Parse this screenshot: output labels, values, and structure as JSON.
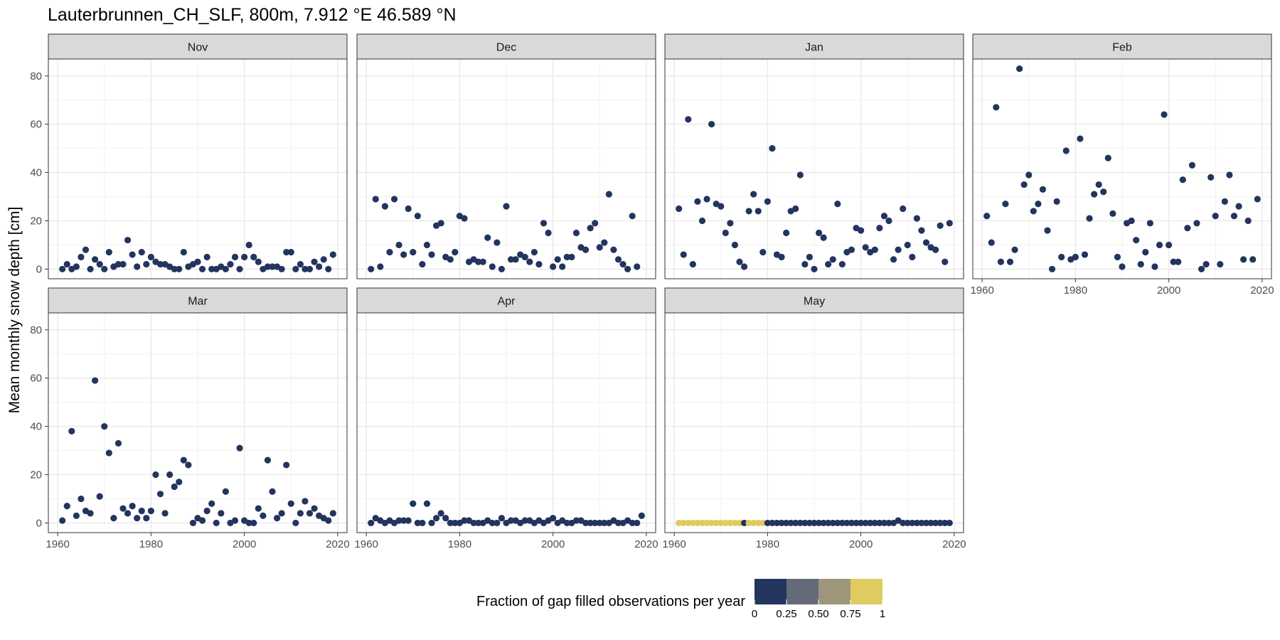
{
  "chart_data": {
    "type": "scatter",
    "title": "Lauterbrunnen_CH_SLF, 800m, 7.912 °E 46.589 °N",
    "ylabel": "Mean monthly snow depth [cm]",
    "xlabel": "",
    "xlim": [
      1958,
      2022
    ],
    "ylim": [
      -4,
      87
    ],
    "x_ticks": [
      1960,
      1980,
      2000,
      2020
    ],
    "y_ticks": [
      0,
      20,
      40,
      60,
      80
    ],
    "x_tick_labels": [
      "1960",
      "1980",
      "2000",
      "2020"
    ],
    "y_tick_labels": [
      "0",
      "20",
      "40",
      "60",
      "80"
    ],
    "grid": true,
    "legend": {
      "title": "Fraction of gap filled observations per year",
      "placement": "bottom",
      "tick_values": [
        0,
        0.25,
        0.5,
        0.75,
        1
      ],
      "tick_labels": [
        "0",
        "0.25",
        "0.50",
        "0.75",
        "1"
      ],
      "colors": [
        "#23345f",
        "#646a78",
        "#9d967a",
        "#e0cb60"
      ]
    },
    "panels": [
      {
        "label": "Nov",
        "years": [
          1961,
          1962,
          1963,
          1964,
          1965,
          1966,
          1967,
          1968,
          1969,
          1970,
          1971,
          1972,
          1973,
          1974,
          1975,
          1976,
          1977,
          1978,
          1979,
          1980,
          1981,
          1982,
          1983,
          1984,
          1985,
          1986,
          1987,
          1988,
          1989,
          1990,
          1991,
          1992,
          1993,
          1994,
          1995,
          1996,
          1997,
          1998,
          1999,
          2000,
          2001,
          2002,
          2003,
          2004,
          2005,
          2006,
          2007,
          2008,
          2009,
          2010,
          2011,
          2012,
          2013,
          2014,
          2015,
          2016,
          2017,
          2018,
          2019
        ],
        "values": [
          0,
          2,
          0,
          1,
          5,
          8,
          0,
          4,
          2,
          0,
          7,
          1,
          2,
          2,
          12,
          6,
          1,
          7,
          2,
          5,
          3,
          2,
          2,
          1,
          0,
          0,
          7,
          1,
          2,
          3,
          0,
          5,
          0,
          0,
          1,
          0,
          2,
          5,
          0,
          5,
          10,
          5,
          3,
          0,
          1,
          1,
          1,
          0,
          7,
          7,
          0,
          2,
          0,
          0,
          3,
          1,
          4,
          0,
          6
        ],
        "fractions": [
          0,
          0,
          0,
          0,
          0,
          0,
          0,
          0,
          0,
          0,
          0,
          0,
          0,
          0,
          0,
          0,
          0,
          0,
          0,
          0,
          0,
          0,
          0,
          0,
          0,
          0,
          0,
          0,
          0,
          0,
          0,
          0,
          0,
          0,
          0,
          0,
          0,
          0,
          0,
          0,
          0,
          0,
          0,
          0,
          0,
          0,
          0,
          0,
          0,
          0,
          0,
          0,
          0,
          0,
          0,
          0,
          0,
          0,
          0
        ]
      },
      {
        "label": "Dec",
        "years": [
          1961,
          1962,
          1963,
          1964,
          1965,
          1966,
          1967,
          1968,
          1969,
          1970,
          1971,
          1972,
          1973,
          1974,
          1975,
          1976,
          1977,
          1978,
          1979,
          1980,
          1981,
          1982,
          1983,
          1984,
          1985,
          1986,
          1987,
          1988,
          1989,
          1990,
          1991,
          1992,
          1993,
          1994,
          1995,
          1996,
          1997,
          1998,
          1999,
          2000,
          2001,
          2002,
          2003,
          2004,
          2005,
          2006,
          2007,
          2008,
          2009,
          2010,
          2011,
          2012,
          2013,
          2014,
          2015,
          2016,
          2017,
          2018
        ],
        "values": [
          0,
          29,
          1,
          26,
          7,
          29,
          10,
          6,
          25,
          7,
          22,
          2,
          10,
          6,
          18,
          19,
          5,
          4,
          7,
          22,
          21,
          3,
          4,
          3,
          3,
          13,
          1,
          11,
          0,
          26,
          4,
          4,
          6,
          5,
          3,
          7,
          2,
          19,
          15,
          1,
          4,
          1,
          5,
          5,
          15,
          9,
          8,
          17,
          19,
          9,
          11,
          31,
          8,
          4,
          2,
          0,
          22,
          1
        ],
        "fractions": [
          0,
          0,
          0,
          0,
          0,
          0,
          0,
          0,
          0,
          0,
          0,
          0,
          0,
          0,
          0,
          0,
          0,
          0,
          0,
          0,
          0,
          0,
          0,
          0,
          0,
          0,
          0,
          0,
          0,
          0,
          0,
          0,
          0,
          0,
          0,
          0,
          0,
          0,
          0,
          0,
          0,
          0,
          0,
          0,
          0,
          0,
          0,
          0,
          0,
          0,
          0,
          0,
          0,
          0,
          0,
          0,
          0,
          0
        ]
      },
      {
        "label": "Jan",
        "years": [
          1961,
          1962,
          1963,
          1964,
          1965,
          1966,
          1967,
          1968,
          1969,
          1970,
          1971,
          1972,
          1973,
          1974,
          1975,
          1976,
          1977,
          1978,
          1979,
          1980,
          1981,
          1982,
          1983,
          1984,
          1985,
          1986,
          1987,
          1988,
          1989,
          1990,
          1991,
          1992,
          1993,
          1994,
          1995,
          1996,
          1997,
          1998,
          1999,
          2000,
          2001,
          2002,
          2003,
          2004,
          2005,
          2006,
          2007,
          2008,
          2009,
          2010,
          2011,
          2012,
          2013,
          2014,
          2015,
          2016,
          2017,
          2018,
          2019
        ],
        "values": [
          25,
          6,
          62,
          2,
          28,
          20,
          29,
          60,
          27,
          26,
          15,
          19,
          10,
          3,
          1,
          24,
          31,
          24,
          7,
          28,
          50,
          6,
          5,
          15,
          24,
          25,
          39,
          2,
          5,
          0,
          15,
          13,
          2,
          4,
          27,
          2,
          7,
          8,
          17,
          16,
          9,
          7,
          8,
          17,
          22,
          20,
          4,
          8,
          25,
          10,
          5,
          21,
          16,
          11,
          9,
          8,
          18,
          3,
          19
        ],
        "fractions": [
          0,
          0,
          0,
          0,
          0,
          0,
          0,
          0,
          0,
          0,
          0,
          0,
          0,
          0,
          0,
          0,
          0,
          0,
          0,
          0,
          0,
          0,
          0,
          0,
          0,
          0,
          0,
          0,
          0,
          0,
          0,
          0,
          0,
          0,
          0,
          0,
          0,
          0,
          0,
          0,
          0,
          0,
          0,
          0,
          0,
          0,
          0,
          0,
          0,
          0,
          0,
          0,
          0,
          0,
          0,
          0,
          0,
          0,
          0
        ]
      },
      {
        "label": "Feb",
        "years": [
          1961,
          1962,
          1963,
          1964,
          1965,
          1966,
          1967,
          1968,
          1969,
          1970,
          1971,
          1972,
          1973,
          1974,
          1975,
          1976,
          1977,
          1978,
          1979,
          1980,
          1981,
          1982,
          1983,
          1984,
          1985,
          1986,
          1987,
          1988,
          1989,
          1990,
          1991,
          1992,
          1993,
          1994,
          1995,
          1996,
          1997,
          1998,
          1999,
          2000,
          2001,
          2002,
          2003,
          2004,
          2005,
          2006,
          2007,
          2008,
          2009,
          2010,
          2011,
          2012,
          2013,
          2014,
          2015,
          2016,
          2017,
          2018,
          2019
        ],
        "values": [
          22,
          11,
          67,
          3,
          27,
          3,
          8,
          83,
          35,
          39,
          24,
          27,
          33,
          16,
          0,
          28,
          5,
          49,
          4,
          5,
          54,
          6,
          21,
          31,
          35,
          32,
          46,
          23,
          5,
          1,
          19,
          20,
          12,
          2,
          7,
          19,
          1,
          10,
          64,
          10,
          3,
          3,
          37,
          17,
          43,
          19,
          0,
          2,
          38,
          22,
          2,
          28,
          39,
          22,
          26,
          4,
          20,
          4,
          29
        ],
        "fractions": [
          0,
          0,
          0,
          0,
          0,
          0,
          0,
          0,
          0,
          0,
          0,
          0,
          0,
          0,
          0,
          0,
          0,
          0,
          0,
          0,
          0,
          0,
          0,
          0,
          0,
          0,
          0,
          0,
          0,
          0,
          0,
          0,
          0,
          0,
          0,
          0,
          0,
          0,
          0,
          0,
          0,
          0,
          0,
          0,
          0,
          0,
          0,
          0,
          0,
          0,
          0,
          0,
          0,
          0,
          0,
          0,
          0,
          0,
          0
        ]
      },
      {
        "label": "Mar",
        "years": [
          1961,
          1962,
          1963,
          1964,
          1965,
          1966,
          1967,
          1968,
          1969,
          1970,
          1971,
          1972,
          1973,
          1974,
          1975,
          1976,
          1977,
          1978,
          1979,
          1980,
          1981,
          1982,
          1983,
          1984,
          1985,
          1986,
          1987,
          1988,
          1989,
          1990,
          1991,
          1992,
          1993,
          1994,
          1995,
          1996,
          1997,
          1998,
          1999,
          2000,
          2001,
          2002,
          2003,
          2004,
          2005,
          2006,
          2007,
          2008,
          2009,
          2010,
          2011,
          2012,
          2013,
          2014,
          2015,
          2016,
          2017,
          2018,
          2019
        ],
        "values": [
          1,
          7,
          38,
          3,
          10,
          5,
          4,
          59,
          11,
          40,
          29,
          2,
          33,
          6,
          4,
          7,
          2,
          5,
          2,
          5,
          20,
          12,
          4,
          20,
          15,
          17,
          26,
          24,
          0,
          2,
          1,
          5,
          8,
          0,
          4,
          13,
          0,
          1,
          31,
          1,
          0,
          0,
          6,
          3,
          26,
          13,
          2,
          4,
          24,
          8,
          0,
          4,
          9,
          4,
          6,
          3,
          2,
          1,
          4
        ],
        "fractions": [
          0,
          0,
          0,
          0,
          0,
          0,
          0,
          0,
          0,
          0,
          0,
          0,
          0,
          0,
          0,
          0,
          0,
          0,
          0,
          0,
          0,
          0,
          0,
          0,
          0,
          0,
          0,
          0,
          0,
          0,
          0,
          0,
          0,
          0,
          0,
          0,
          0,
          0,
          0,
          0,
          0,
          0,
          0,
          0,
          0,
          0,
          0,
          0,
          0,
          0,
          0,
          0,
          0,
          0,
          0,
          0,
          0,
          0,
          0
        ]
      },
      {
        "label": "Apr",
        "years": [
          1961,
          1962,
          1963,
          1964,
          1965,
          1966,
          1967,
          1968,
          1969,
          1970,
          1971,
          1972,
          1973,
          1974,
          1975,
          1976,
          1977,
          1978,
          1979,
          1980,
          1981,
          1982,
          1983,
          1984,
          1985,
          1986,
          1987,
          1988,
          1989,
          1990,
          1991,
          1992,
          1993,
          1994,
          1995,
          1996,
          1997,
          1998,
          1999,
          2000,
          2001,
          2002,
          2003,
          2004,
          2005,
          2006,
          2007,
          2008,
          2009,
          2010,
          2011,
          2012,
          2013,
          2014,
          2015,
          2016,
          2017,
          2018,
          2019
        ],
        "values": [
          0,
          2,
          1,
          0,
          1,
          0,
          1,
          1,
          1,
          8,
          0,
          0,
          8,
          0,
          2,
          4,
          2,
          0,
          0,
          0,
          1,
          1,
          0,
          0,
          0,
          1,
          0,
          0,
          2,
          0,
          1,
          1,
          0,
          1,
          1,
          0,
          1,
          0,
          1,
          2,
          0,
          1,
          0,
          0,
          1,
          1,
          0,
          0,
          0,
          0,
          0,
          0,
          1,
          0,
          0,
          1,
          0,
          0,
          3
        ],
        "fractions": [
          0,
          0,
          0,
          0,
          0,
          0,
          0,
          0,
          0,
          0,
          0,
          0,
          0,
          0,
          0,
          0,
          0,
          0,
          0,
          0,
          0,
          0,
          0,
          0,
          0,
          0,
          0,
          0,
          0,
          0,
          0,
          0,
          0,
          0,
          0,
          0,
          0,
          0,
          0,
          0,
          0,
          0,
          0,
          0,
          0,
          0,
          0,
          0,
          0,
          0,
          0,
          0,
          0,
          0,
          0,
          0,
          0,
          0,
          0
        ]
      },
      {
        "label": "May",
        "years": [
          1961,
          1962,
          1963,
          1964,
          1965,
          1966,
          1967,
          1968,
          1969,
          1970,
          1971,
          1972,
          1973,
          1974,
          1975,
          1976,
          1977,
          1978,
          1979,
          1980,
          1981,
          1982,
          1983,
          1984,
          1985,
          1986,
          1987,
          1988,
          1989,
          1990,
          1991,
          1992,
          1993,
          1994,
          1995,
          1996,
          1997,
          1998,
          1999,
          2000,
          2001,
          2002,
          2003,
          2004,
          2005,
          2006,
          2007,
          2008,
          2009,
          2010,
          2011,
          2012,
          2013,
          2014,
          2015,
          2016,
          2017,
          2018,
          2019
        ],
        "values": [
          0,
          0,
          0,
          0,
          0,
          0,
          0,
          0,
          0,
          0,
          0,
          0,
          0,
          0,
          0,
          0,
          0,
          0,
          0,
          0,
          0,
          0,
          0,
          0,
          0,
          0,
          0,
          0,
          0,
          0,
          0,
          0,
          0,
          0,
          0,
          0,
          0,
          0,
          0,
          0,
          0,
          0,
          0,
          0,
          0,
          0,
          0,
          1,
          0,
          0,
          0,
          0,
          0,
          0,
          0,
          0,
          0,
          0,
          0
        ],
        "fractions": [
          1,
          1,
          1,
          1,
          1,
          1,
          1,
          1,
          1,
          1,
          1,
          1,
          1,
          1,
          0,
          1,
          1,
          1,
          1,
          0,
          0,
          0,
          0,
          0,
          0,
          0,
          0,
          0,
          0,
          0,
          0,
          0,
          0,
          0,
          0,
          0,
          0,
          0,
          0,
          0,
          0,
          0,
          0,
          0,
          0,
          0,
          0,
          0,
          0,
          0,
          0,
          0,
          0,
          0,
          0,
          0,
          0,
          0,
          0
        ]
      }
    ]
  }
}
